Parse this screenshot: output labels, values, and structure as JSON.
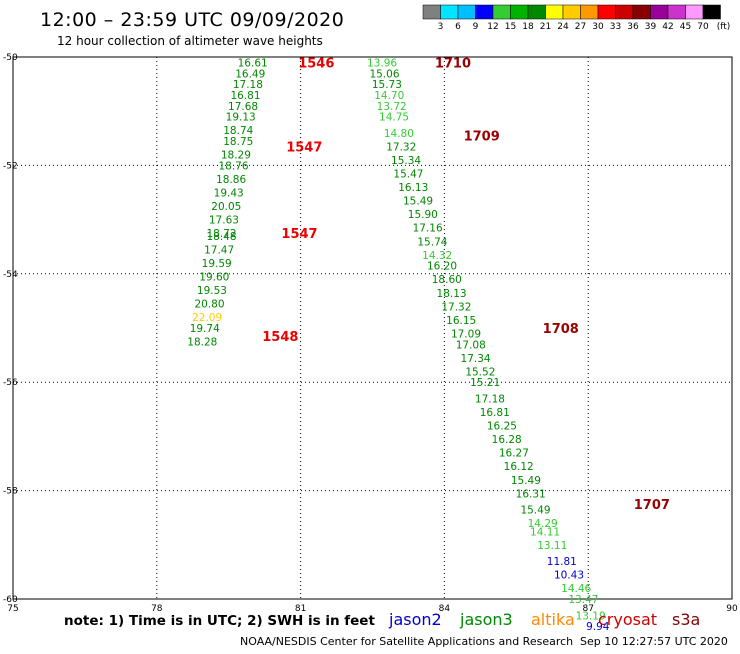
{
  "title": "12:00 – 23:59 UTC 09/09/2020",
  "subtitle": "12 hour collection of altimeter wave heights",
  "note": "note: 1) Time is in UTC; 2) SWH is in feet",
  "credit": "NOAA/NESDIS Center for Satellite Applications and Research",
  "timestamp": "Sep 10 12:27:57 UTC 2020",
  "satellites": [
    {
      "name": "jason2",
      "color": "#0000cc"
    },
    {
      "name": "jason3",
      "color": "#008800"
    },
    {
      "name": "altika",
      "color": "#ff8800"
    },
    {
      "name": "cryosat",
      "color": "#cc0000"
    },
    {
      "name": "s3a",
      "color": "#880000"
    }
  ],
  "colorbar": {
    "unit": "(ft)",
    "values": [
      "3",
      "6",
      "9",
      "12",
      "15",
      "18",
      "21",
      "24",
      "27",
      "30",
      "33",
      "36",
      "39",
      "42",
      "45",
      "70"
    ],
    "colors": [
      "#808080",
      "#00e5ff",
      "#00bfff",
      "#0000ff",
      "#33cc33",
      "#00b300",
      "#008800",
      "#ffff00",
      "#ffcc00",
      "#ff9900",
      "#ff0000",
      "#cc0000",
      "#880000",
      "#990099",
      "#cc33cc",
      "#ff99ff",
      "#000000"
    ]
  },
  "chart_data": {
    "type": "scatter",
    "xlim": [
      75,
      90
    ],
    "ylim": [
      -60,
      -50
    ],
    "x_ticks": [
      75,
      78,
      81,
      84,
      87,
      90
    ],
    "y_ticks": [
      -50,
      -52,
      -54,
      -56,
      -58,
      -60
    ],
    "x_tick_labels": [
      "75",
      "78",
      "81",
      "84",
      "87",
      "90"
    ],
    "y_tick_labels": [
      "-50",
      "-52",
      "-54",
      "-56",
      "-58",
      "-60"
    ],
    "grid": true,
    "point_colors": {
      "lg": "#33cc33",
      "dg": "#008800",
      "yl": "#ffcc00",
      "bl": "#0000cc"
    },
    "track_labels": [
      {
        "text": "1546",
        "x": 80.95,
        "y": -50.1,
        "color": "#ee0000"
      },
      {
        "text": "1547",
        "x": 80.7,
        "y": -51.65,
        "color": "#ee0000"
      },
      {
        "text": "1547",
        "x": 80.6,
        "y": -53.25,
        "color": "#ee0000"
      },
      {
        "text": "1548",
        "x": 80.2,
        "y": -55.15,
        "color": "#ee0000"
      },
      {
        "text": "1710",
        "x": 83.8,
        "y": -50.1,
        "color": "#990000"
      },
      {
        "text": "1709",
        "x": 84.4,
        "y": -51.45,
        "color": "#990000"
      },
      {
        "text": "1708",
        "x": 86.05,
        "y": -55.0,
        "color": "#990000"
      },
      {
        "text": "1707",
        "x": 87.95,
        "y": -58.25,
        "color": "#990000"
      }
    ],
    "series": [
      {
        "track": "cryosat",
        "points": [
          {
            "x": 80.0,
            "y": -50.1,
            "v": "16.61",
            "c": "dg"
          },
          {
            "x": 79.95,
            "y": -50.3,
            "v": "16.49",
            "c": "dg"
          },
          {
            "x": 79.9,
            "y": -50.5,
            "v": "17.18",
            "c": "dg"
          },
          {
            "x": 79.85,
            "y": -50.7,
            "v": "16.81",
            "c": "dg"
          },
          {
            "x": 79.8,
            "y": -50.9,
            "v": "17.68",
            "c": "dg"
          },
          {
            "x": 79.75,
            "y": -51.1,
            "v": "19.13",
            "c": "dg"
          },
          {
            "x": 79.7,
            "y": -51.35,
            "v": "18.74",
            "c": "dg"
          },
          {
            "x": 79.7,
            "y": -51.55,
            "v": "18.75",
            "c": "dg"
          },
          {
            "x": 79.65,
            "y": -51.8,
            "v": "18.29",
            "c": "dg"
          },
          {
            "x": 79.6,
            "y": -52.0,
            "v": "18.76",
            "c": "dg"
          },
          {
            "x": 79.55,
            "y": -52.25,
            "v": "18.86",
            "c": "dg"
          },
          {
            "x": 79.5,
            "y": -52.5,
            "v": "19.43",
            "c": "dg"
          },
          {
            "x": 79.45,
            "y": -52.75,
            "v": "20.05",
            "c": "dg"
          },
          {
            "x": 79.4,
            "y": -53.0,
            "v": "17.63",
            "c": "dg"
          },
          {
            "x": 79.35,
            "y": -53.25,
            "v": "18.72",
            "c": "dg"
          },
          {
            "x": 79.35,
            "y": -53.3,
            "v": "18.48",
            "c": "dg"
          },
          {
            "x": 79.3,
            "y": -53.55,
            "v": "17.47",
            "c": "dg"
          },
          {
            "x": 79.25,
            "y": -53.8,
            "v": "19.59",
            "c": "dg"
          },
          {
            "x": 79.2,
            "y": -54.05,
            "v": "19.60",
            "c": "dg"
          },
          {
            "x": 79.15,
            "y": -54.3,
            "v": "19.53",
            "c": "dg"
          },
          {
            "x": 79.1,
            "y": -54.55,
            "v": "20.80",
            "c": "dg"
          },
          {
            "x": 79.05,
            "y": -54.8,
            "v": "22.09",
            "c": "yl"
          },
          {
            "x": 79.0,
            "y": -55.0,
            "v": "19.74",
            "c": "dg"
          },
          {
            "x": 78.95,
            "y": -55.25,
            "v": "18.28",
            "c": "dg"
          }
        ]
      },
      {
        "track": "s3a",
        "points": [
          {
            "x": 82.7,
            "y": -50.1,
            "v": "13.96",
            "c": "lg"
          },
          {
            "x": 82.75,
            "y": -50.3,
            "v": "15.06",
            "c": "dg"
          },
          {
            "x": 82.8,
            "y": -50.5,
            "v": "15.73",
            "c": "dg"
          },
          {
            "x": 82.85,
            "y": -50.7,
            "v": "14.70",
            "c": "lg"
          },
          {
            "x": 82.9,
            "y": -50.9,
            "v": "13.72",
            "c": "lg"
          },
          {
            "x": 82.95,
            "y": -51.1,
            "v": "14.75",
            "c": "lg"
          },
          {
            "x": 83.05,
            "y": -51.4,
            "v": "14.80",
            "c": "lg"
          },
          {
            "x": 83.1,
            "y": -51.65,
            "v": "17.32",
            "c": "dg"
          },
          {
            "x": 83.2,
            "y": -51.9,
            "v": "15.34",
            "c": "dg"
          },
          {
            "x": 83.25,
            "y": -52.15,
            "v": "15.47",
            "c": "dg"
          },
          {
            "x": 83.35,
            "y": -52.4,
            "v": "16.13",
            "c": "dg"
          },
          {
            "x": 83.45,
            "y": -52.65,
            "v": "15.49",
            "c": "dg"
          },
          {
            "x": 83.55,
            "y": -52.9,
            "v": "15.90",
            "c": "dg"
          },
          {
            "x": 83.65,
            "y": -53.15,
            "v": "17.16",
            "c": "dg"
          },
          {
            "x": 83.75,
            "y": -53.4,
            "v": "15.74",
            "c": "dg"
          },
          {
            "x": 83.85,
            "y": -53.65,
            "v": "14.32",
            "c": "lg"
          },
          {
            "x": 83.95,
            "y": -53.85,
            "v": "16.20",
            "c": "dg"
          },
          {
            "x": 84.05,
            "y": -54.1,
            "v": "18.60",
            "c": "dg"
          },
          {
            "x": 84.15,
            "y": -54.35,
            "v": "18.13",
            "c": "dg"
          },
          {
            "x": 84.25,
            "y": -54.6,
            "v": "17.32",
            "c": "dg"
          },
          {
            "x": 84.35,
            "y": -54.85,
            "v": "16.15",
            "c": "dg"
          },
          {
            "x": 84.45,
            "y": -55.1,
            "v": "17.09",
            "c": "dg"
          },
          {
            "x": 84.55,
            "y": -55.3,
            "v": "17.08",
            "c": "dg"
          },
          {
            "x": 84.65,
            "y": -55.55,
            "v": "17.34",
            "c": "dg"
          },
          {
            "x": 84.75,
            "y": -55.8,
            "v": "15.52",
            "c": "dg"
          },
          {
            "x": 84.85,
            "y": -56.0,
            "v": "15.21",
            "c": "dg"
          },
          {
            "x": 84.95,
            "y": -56.3,
            "v": "17.18",
            "c": "dg"
          },
          {
            "x": 85.05,
            "y": -56.55,
            "v": "16.81",
            "c": "dg"
          },
          {
            "x": 85.2,
            "y": -56.8,
            "v": "16.25",
            "c": "dg"
          },
          {
            "x": 85.3,
            "y": -57.05,
            "v": "16.28",
            "c": "dg"
          },
          {
            "x": 85.45,
            "y": -57.3,
            "v": "16.27",
            "c": "dg"
          },
          {
            "x": 85.55,
            "y": -57.55,
            "v": "16.12",
            "c": "dg"
          },
          {
            "x": 85.7,
            "y": -57.8,
            "v": "15.49",
            "c": "dg"
          },
          {
            "x": 85.8,
            "y": -58.05,
            "v": "16.31",
            "c": "dg"
          },
          {
            "x": 85.9,
            "y": -58.35,
            "v": "15.49",
            "c": "dg"
          },
          {
            "x": 86.05,
            "y": -58.6,
            "v": "14.29",
            "c": "lg"
          },
          {
            "x": 86.1,
            "y": -58.75,
            "v": "14.11",
            "c": "lg"
          },
          {
            "x": 86.25,
            "y": -59.0,
            "v": "13.11",
            "c": "lg"
          },
          {
            "x": 86.45,
            "y": -59.3,
            "v": "11.81",
            "c": "bl"
          },
          {
            "x": 86.6,
            "y": -59.55,
            "v": "10.43",
            "c": "bl"
          },
          {
            "x": 86.75,
            "y": -59.8,
            "v": "14.46",
            "c": "lg"
          },
          {
            "x": 86.9,
            "y": -60.0,
            "v": "13.47",
            "c": "lg"
          },
          {
            "x": 87.05,
            "y": -60.3,
            "v": "13.19",
            "c": "lg"
          },
          {
            "x": 87.2,
            "y": -60.5,
            "v": "9.94",
            "c": "bl"
          }
        ]
      }
    ]
  }
}
